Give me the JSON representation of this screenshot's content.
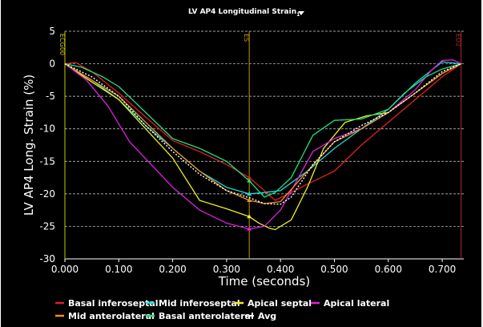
{
  "chart_data": {
    "type": "line",
    "title": "LV AP4 Longitudinal Strain",
    "title_subscript": "1",
    "xlabel": "Time (seconds)",
    "ylabel": "LV AP4 Long. Strain (%)",
    "xlim": [
      0.0,
      0.74
    ],
    "ylim": [
      -30,
      5
    ],
    "x_ticks": [
      "0.000",
      "0.100",
      "0.200",
      "0.300",
      "0.400",
      "0.500",
      "0.600",
      "0.700"
    ],
    "y_ticks": [
      "5",
      "0",
      "-5",
      "-10",
      "-15",
      "-20",
      "-25",
      "-30"
    ],
    "grid": true,
    "legend_position": "bottom",
    "markers": [
      {
        "label": "ECG00",
        "x": 0.0,
        "color": "#c8c800"
      },
      {
        "label": "ES",
        "x": 0.342,
        "color": "#c89600"
      },
      {
        "label": "ED2",
        "x": 0.735,
        "color": "#b42828"
      }
    ],
    "series": [
      {
        "name": "Basal inferoseptal",
        "color": "#e02020",
        "points": [
          [
            0.0,
            0
          ],
          [
            0.02,
            0.2
          ],
          [
            0.05,
            -1.2
          ],
          [
            0.1,
            -4.5
          ],
          [
            0.15,
            -8.2
          ],
          [
            0.2,
            -11.8
          ],
          [
            0.25,
            -13.5
          ],
          [
            0.3,
            -15.5
          ],
          [
            0.342,
            -17.5
          ],
          [
            0.37,
            -19.5
          ],
          [
            0.39,
            -21.0
          ],
          [
            0.42,
            -19.8
          ],
          [
            0.45,
            -18.5
          ],
          [
            0.5,
            -16.5
          ],
          [
            0.55,
            -12.5
          ],
          [
            0.6,
            -9.0
          ],
          [
            0.65,
            -5.5
          ],
          [
            0.7,
            -2.0
          ],
          [
            0.735,
            0
          ]
        ]
      },
      {
        "name": "Mid inferoseptal",
        "color": "#20d8d8",
        "points": [
          [
            0.0,
            0
          ],
          [
            0.05,
            -2.5
          ],
          [
            0.1,
            -5.5
          ],
          [
            0.15,
            -9.5
          ],
          [
            0.2,
            -13.0
          ],
          [
            0.25,
            -16.5
          ],
          [
            0.3,
            -19.0
          ],
          [
            0.342,
            -20.0
          ],
          [
            0.37,
            -19.8
          ],
          [
            0.4,
            -19.5
          ],
          [
            0.45,
            -16.5
          ],
          [
            0.5,
            -13.0
          ],
          [
            0.55,
            -10.0
          ],
          [
            0.6,
            -7.0
          ],
          [
            0.65,
            -3.0
          ],
          [
            0.68,
            -1.0
          ],
          [
            0.7,
            0.3
          ],
          [
            0.735,
            0
          ]
        ]
      },
      {
        "name": "Apical septal",
        "color": "#f0f020",
        "points": [
          [
            0.0,
            0
          ],
          [
            0.05,
            -2.8
          ],
          [
            0.1,
            -5.5
          ],
          [
            0.15,
            -10.0
          ],
          [
            0.2,
            -14.5
          ],
          [
            0.25,
            -21.0
          ],
          [
            0.3,
            -22.3
          ],
          [
            0.342,
            -23.5
          ],
          [
            0.36,
            -24.5
          ],
          [
            0.38,
            -25.3
          ],
          [
            0.39,
            -25.5
          ],
          [
            0.42,
            -24.0
          ],
          [
            0.45,
            -19.0
          ],
          [
            0.48,
            -13.0
          ],
          [
            0.52,
            -9.0
          ],
          [
            0.56,
            -8.0
          ],
          [
            0.6,
            -7.5
          ],
          [
            0.65,
            -4.5
          ],
          [
            0.7,
            -1.5
          ],
          [
            0.735,
            0
          ]
        ]
      },
      {
        "name": "Apical lateral",
        "color": "#e020e0",
        "points": [
          [
            0.0,
            0
          ],
          [
            0.04,
            -2.5
          ],
          [
            0.08,
            -6.5
          ],
          [
            0.12,
            -12.0
          ],
          [
            0.16,
            -15.5
          ],
          [
            0.2,
            -19.0
          ],
          [
            0.25,
            -22.5
          ],
          [
            0.3,
            -24.5
          ],
          [
            0.342,
            -25.4
          ],
          [
            0.37,
            -25.0
          ],
          [
            0.4,
            -22.5
          ],
          [
            0.43,
            -18.0
          ],
          [
            0.46,
            -13.5
          ],
          [
            0.5,
            -11.5
          ],
          [
            0.55,
            -10.0
          ],
          [
            0.6,
            -7.5
          ],
          [
            0.65,
            -4.0
          ],
          [
            0.68,
            -1.0
          ],
          [
            0.7,
            0.5
          ],
          [
            0.72,
            0.6
          ],
          [
            0.735,
            0
          ]
        ]
      },
      {
        "name": "Mid anterolateral",
        "color": "#f09020",
        "points": [
          [
            0.0,
            0
          ],
          [
            0.05,
            -2.5
          ],
          [
            0.1,
            -5.0
          ],
          [
            0.15,
            -9.0
          ],
          [
            0.2,
            -13.0
          ],
          [
            0.25,
            -16.5
          ],
          [
            0.3,
            -19.5
          ],
          [
            0.342,
            -21.0
          ],
          [
            0.37,
            -21.5
          ],
          [
            0.4,
            -21.2
          ],
          [
            0.45,
            -16.5
          ],
          [
            0.5,
            -12.0
          ],
          [
            0.55,
            -10.0
          ],
          [
            0.6,
            -7.5
          ],
          [
            0.65,
            -4.5
          ],
          [
            0.7,
            -1.5
          ],
          [
            0.735,
            0
          ]
        ]
      },
      {
        "name": "Basal anterolateral",
        "color": "#20e080",
        "points": [
          [
            0.0,
            0
          ],
          [
            0.03,
            -0.5
          ],
          [
            0.07,
            -2.0
          ],
          [
            0.1,
            -3.5
          ],
          [
            0.15,
            -7.5
          ],
          [
            0.2,
            -11.5
          ],
          [
            0.25,
            -13.0
          ],
          [
            0.3,
            -15.0
          ],
          [
            0.342,
            -18.0
          ],
          [
            0.37,
            -20.5
          ],
          [
            0.39,
            -19.8
          ],
          [
            0.42,
            -17.5
          ],
          [
            0.46,
            -11.0
          ],
          [
            0.5,
            -8.7
          ],
          [
            0.55,
            -8.5
          ],
          [
            0.6,
            -7.0
          ],
          [
            0.63,
            -4.5
          ],
          [
            0.67,
            -2.0
          ],
          [
            0.7,
            -0.8
          ],
          [
            0.735,
            0
          ]
        ]
      },
      {
        "name": "Avg",
        "color": "#ffffff",
        "dashed": true,
        "points": [
          [
            0.0,
            0
          ],
          [
            0.05,
            -2.0
          ],
          [
            0.1,
            -5.0
          ],
          [
            0.15,
            -9.5
          ],
          [
            0.2,
            -13.5
          ],
          [
            0.25,
            -17.0
          ],
          [
            0.3,
            -19.5
          ],
          [
            0.342,
            -20.6
          ],
          [
            0.37,
            -21.5
          ],
          [
            0.4,
            -21.6
          ],
          [
            0.42,
            -20.5
          ],
          [
            0.46,
            -15.5
          ],
          [
            0.5,
            -12.0
          ],
          [
            0.55,
            -9.5
          ],
          [
            0.6,
            -7.5
          ],
          [
            0.65,
            -4.5
          ],
          [
            0.7,
            -1.2
          ],
          [
            0.735,
            0
          ]
        ]
      }
    ]
  }
}
